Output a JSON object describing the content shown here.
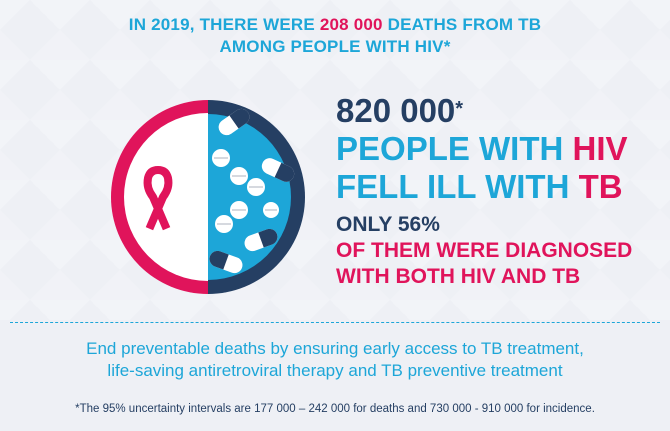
{
  "headline": {
    "line1_pre": "IN 2019, THERE WERE ",
    "line1_number": "208 000",
    "line1_post": " DEATHS FROM TB",
    "line2": "AMONG PEOPLE WITH HIV*"
  },
  "stats": {
    "big_number": "820 000",
    "big_number_mark": "*",
    "line1_pre": "PEOPLE WITH ",
    "line1_accent": "HIV",
    "line2_pre": "FELL ILL WITH ",
    "line2_accent": "TB",
    "diagnosed_intro": "ONLY 56%",
    "diagnosed_line1": "OF THEM WERE DIAGNOSED",
    "diagnosed_line2": "WITH BOTH HIV AND TB"
  },
  "message": {
    "line1": "End preventable deaths by ensuring early access to TB treatment,",
    "line2": "life-saving antiretroviral therapy and TB preventive treatment"
  },
  "footnote": "*The 95% uncertainty intervals are 177 000 – 242 000 for deaths and 730 000 - 910 000 for incidence.",
  "colors": {
    "pink": "#e0145b",
    "cyan": "#1da6d8",
    "navy": "#253f63",
    "background": "#eef0f5"
  },
  "icons": {
    "emblem": "hiv-tb-pill-circle-icon",
    "ribbon": "awareness-ribbon-icon"
  }
}
